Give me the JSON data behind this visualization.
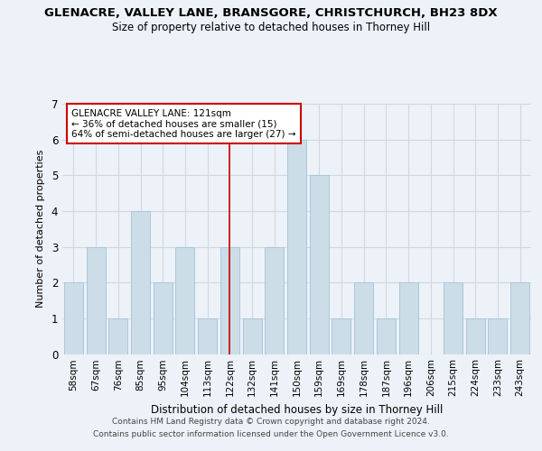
{
  "title": "GLENACRE, VALLEY LANE, BRANSGORE, CHRISTCHURCH, BH23 8DX",
  "subtitle": "Size of property relative to detached houses in Thorney Hill",
  "xlabel": "Distribution of detached houses by size in Thorney Hill",
  "ylabel": "Number of detached properties",
  "categories": [
    "58sqm",
    "67sqm",
    "76sqm",
    "85sqm",
    "95sqm",
    "104sqm",
    "113sqm",
    "122sqm",
    "132sqm",
    "141sqm",
    "150sqm",
    "159sqm",
    "169sqm",
    "178sqm",
    "187sqm",
    "196sqm",
    "206sqm",
    "215sqm",
    "224sqm",
    "233sqm",
    "243sqm"
  ],
  "values": [
    2,
    3,
    1,
    4,
    2,
    3,
    1,
    3,
    1,
    3,
    6,
    5,
    1,
    2,
    1,
    2,
    0,
    2,
    1,
    1,
    2
  ],
  "bar_color": "#ccdde8",
  "bar_edgecolor": "#a8c8dc",
  "property_line_index": 7,
  "property_label": "GLENACRE VALLEY LANE: 121sqm",
  "annotation_line1": "← 36% of detached houses are smaller (15)",
  "annotation_line2": "64% of semi-detached houses are larger (27) →",
  "annotation_box_facecolor": "#ffffff",
  "annotation_box_edgecolor": "#cc0000",
  "vline_color": "#cc0000",
  "grid_color": "#d0d8e0",
  "footer1": "Contains HM Land Registry data © Crown copyright and database right 2024.",
  "footer2": "Contains public sector information licensed under the Open Government Licence v3.0.",
  "ylim": [
    0,
    7
  ],
  "background_color": "#edf2f8"
}
